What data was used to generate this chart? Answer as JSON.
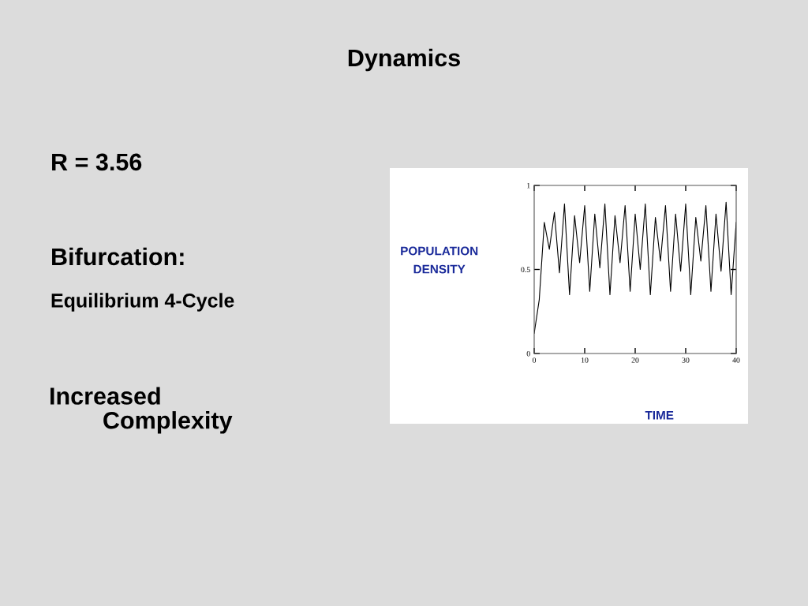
{
  "chart_data": {
    "type": "line",
    "title": "Dynamics",
    "annotations": [
      "R = 3.56",
      "Bifurcation:",
      "Equilibrium 4-Cycle",
      "Increased\n        Complexity"
    ],
    "xlabel": "TIME",
    "ylabel": "POPULATION\nDENSITY",
    "x": [
      0,
      1,
      2,
      3,
      4,
      5,
      6,
      7,
      8,
      9,
      10,
      11,
      12,
      13,
      14,
      15,
      16,
      17,
      18,
      19,
      20,
      21,
      22,
      23,
      24,
      25,
      26,
      27,
      28,
      29,
      30,
      31,
      32,
      33,
      34,
      35,
      36,
      37,
      38,
      39,
      40
    ],
    "series": [
      {
        "color": "#000000",
        "values": [
          0.12,
          0.32,
          0.78,
          0.62,
          0.84,
          0.48,
          0.89,
          0.35,
          0.82,
          0.54,
          0.88,
          0.37,
          0.83,
          0.51,
          0.89,
          0.35,
          0.82,
          0.54,
          0.88,
          0.37,
          0.83,
          0.5,
          0.89,
          0.35,
          0.81,
          0.55,
          0.88,
          0.37,
          0.83,
          0.49,
          0.89,
          0.35,
          0.81,
          0.55,
          0.88,
          0.37,
          0.83,
          0.49,
          0.9,
          0.35,
          0.78
        ]
      }
    ],
    "xlim": [
      0,
      40
    ],
    "ylim": [
      0,
      1
    ],
    "xticks": [
      0,
      10,
      20,
      30,
      40
    ],
    "yticks": [
      0,
      0.5,
      1
    ],
    "grid": false,
    "legend": false,
    "marker": "none",
    "line_style": "solid"
  }
}
